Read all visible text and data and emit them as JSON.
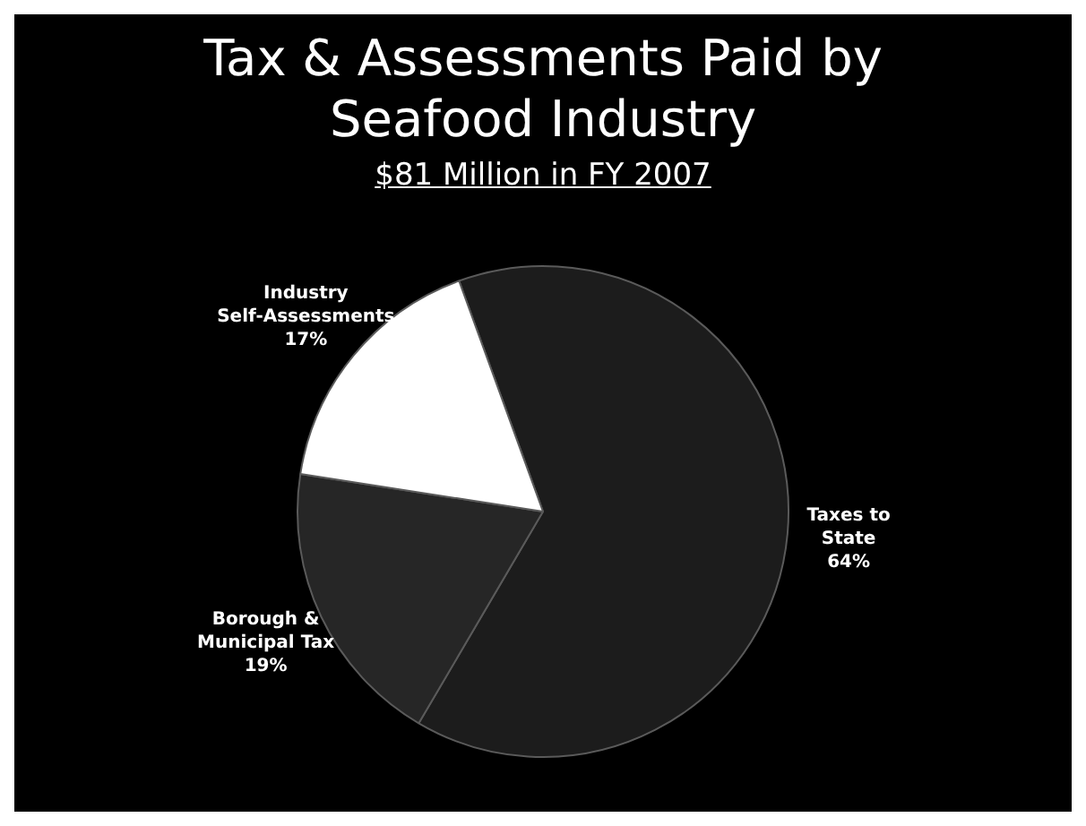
{
  "chart_data": {
    "type": "pie",
    "title": "Tax & Assessments Paid by Seafood Industry",
    "subtitle": "$81 Million in FY 2007",
    "categories": [
      "Taxes to State",
      "Borough & Municipal Tax",
      "Industry Self-Assessments"
    ],
    "values": [
      64,
      19,
      17
    ],
    "colors": [
      "#1c1c1c",
      "#262626",
      "#ffffff"
    ],
    "value_labels": [
      "64%",
      "19%",
      "17%"
    ],
    "legend": false
  }
}
